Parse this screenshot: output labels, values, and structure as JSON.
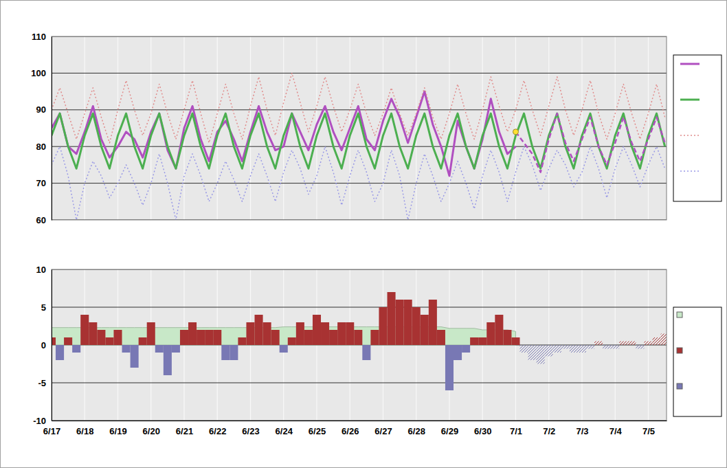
{
  "chart_data": [
    {
      "type": "line",
      "xlim": [
        0,
        18.55
      ],
      "xticks": [
        0,
        1,
        2,
        3,
        4,
        5,
        6,
        7,
        8,
        9,
        10,
        11,
        12,
        13,
        14,
        15,
        16,
        17,
        18
      ],
      "ylim": [
        60,
        110
      ],
      "yticks": [
        60,
        70,
        80,
        90,
        100,
        110
      ],
      "grid": true,
      "tick_labels": "y",
      "legend": "right",
      "series": [
        {
          "type": "line",
          "color": "#b04fc0",
          "line_style": "solid",
          "x": [
            0,
            0.25,
            0.5,
            0.75,
            1,
            1.25,
            1.5,
            1.75,
            2,
            2.25,
            2.5,
            2.75,
            3,
            3.25,
            3.5,
            3.75,
            4,
            4.25,
            4.5,
            4.75,
            5,
            5.25,
            5.5,
            5.75,
            6,
            6.25,
            6.5,
            6.75,
            7,
            7.25,
            7.5,
            7.75,
            8,
            8.25,
            8.5,
            8.75,
            9,
            9.25,
            9.5,
            9.75,
            10,
            10.25,
            10.5,
            10.75,
            11,
            11.25,
            11.5,
            11.75,
            12,
            12.25,
            12.5,
            12.75,
            13,
            13.25,
            13.5,
            13.75,
            14
          ],
          "values": [
            85,
            89,
            80,
            78,
            84,
            91,
            82,
            77,
            80,
            84,
            82,
            77,
            84,
            89,
            79,
            74,
            85,
            91,
            82,
            76,
            84,
            87,
            82,
            76,
            84,
            91,
            84,
            79,
            80,
            89,
            84,
            79,
            86,
            91,
            84,
            79,
            85,
            91,
            82,
            79,
            87,
            93,
            88,
            81,
            88,
            95,
            86,
            80,
            72,
            87,
            80,
            74,
            82,
            93,
            84,
            78,
            80
          ]
        },
        {
          "type": "line",
          "color": "#4caf50",
          "line_style": "solid",
          "x": [
            0,
            0.25,
            0.5,
            0.75,
            1,
            1.25,
            1.5,
            1.75,
            2,
            2.25,
            2.5,
            2.75,
            3,
            3.25,
            3.5,
            3.75,
            4,
            4.25,
            4.5,
            4.75,
            5,
            5.25,
            5.5,
            5.75,
            6,
            6.25,
            6.5,
            6.75,
            7,
            7.25,
            7.5,
            7.75,
            8,
            8.25,
            8.5,
            8.75,
            9,
            9.25,
            9.5,
            9.75,
            10,
            10.25,
            10.5,
            10.75,
            11,
            11.25,
            11.5,
            11.75,
            12,
            12.25,
            12.5,
            12.75,
            13,
            13.25,
            13.5,
            13.75,
            14,
            14.25,
            14.5,
            14.75,
            15,
            15.25,
            15.5,
            15.75,
            16,
            16.25,
            16.5,
            16.75,
            17,
            17.25,
            17.5,
            17.75,
            18,
            18.25,
            18.5
          ],
          "values": [
            83,
            89,
            80,
            74,
            83,
            89,
            80,
            74,
            83,
            89,
            80,
            74,
            83,
            89,
            80,
            74,
            83,
            89,
            80,
            74,
            83,
            89,
            80,
            74,
            83,
            89,
            80,
            74,
            83,
            89,
            80,
            74,
            83,
            89,
            80,
            74,
            83,
            89,
            80,
            74,
            83,
            89,
            80,
            74,
            83,
            89,
            80,
            74,
            83,
            89,
            80,
            74,
            83,
            89,
            80,
            74,
            83,
            89,
            80,
            74,
            83,
            89,
            80,
            74,
            83,
            89,
            80,
            74,
            83,
            89,
            80,
            74,
            83,
            89,
            80
          ]
        },
        {
          "type": "line",
          "color": "#e08c8c",
          "line_style": "dotted",
          "x": [
            0,
            0.25,
            0.5,
            0.75,
            1,
            1.25,
            1.5,
            1.75,
            2,
            2.25,
            2.5,
            2.75,
            3,
            3.25,
            3.5,
            3.75,
            4,
            4.25,
            4.5,
            4.75,
            5,
            5.25,
            5.5,
            5.75,
            6,
            6.25,
            6.5,
            6.75,
            7,
            7.25,
            7.5,
            7.75,
            8,
            8.25,
            8.5,
            8.75,
            9,
            9.25,
            9.5,
            9.75,
            10,
            10.25,
            10.5,
            10.75,
            11,
            11.25,
            11.5,
            11.75,
            12,
            12.25,
            12.5,
            12.75,
            13,
            13.25,
            13.5,
            13.75,
            14,
            14.25,
            14.5,
            14.75,
            15,
            15.25,
            15.5,
            15.75,
            16,
            16.25,
            16.5,
            16.75,
            17,
            17.25,
            17.5,
            17.75,
            18,
            18.25,
            18.5
          ],
          "values": [
            90,
            96,
            89,
            82,
            89,
            96,
            88,
            81,
            90,
            98,
            90,
            83,
            89,
            97,
            89,
            82,
            90,
            98,
            89,
            81,
            89,
            97,
            89,
            82,
            91,
            99,
            90,
            83,
            92,
            100,
            92,
            84,
            91,
            99,
            91,
            84,
            90,
            97,
            89,
            83,
            89,
            96,
            89,
            83,
            89,
            96,
            88,
            82,
            89,
            97,
            89,
            82,
            90,
            99,
            91,
            84,
            90,
            98,
            90,
            83,
            91,
            99,
            90,
            83,
            90,
            98,
            89,
            82,
            89,
            97,
            89,
            82,
            89,
            97,
            88
          ]
        },
        {
          "type": "line",
          "color": "#9999e6",
          "line_style": "dotted",
          "x": [
            0,
            0.25,
            0.5,
            0.75,
            1,
            1.25,
            1.5,
            1.75,
            2,
            2.25,
            2.5,
            2.75,
            3,
            3.25,
            3.5,
            3.75,
            4,
            4.25,
            4.5,
            4.75,
            5,
            5.25,
            5.5,
            5.75,
            6,
            6.25,
            6.5,
            6.75,
            7,
            7.25,
            7.5,
            7.75,
            8,
            8.25,
            8.5,
            8.75,
            9,
            9.25,
            9.5,
            9.75,
            10,
            10.25,
            10.5,
            10.75,
            11,
            11.25,
            11.5,
            11.75,
            12,
            12.25,
            12.5,
            12.75,
            13,
            13.25,
            13.5,
            13.75,
            14,
            14.25,
            14.5,
            14.75,
            15,
            15.25,
            15.5,
            15.75,
            16,
            16.25,
            16.5,
            16.75,
            17,
            17.25,
            17.5,
            17.75,
            18,
            18.25,
            18.5
          ],
          "values": [
            75,
            80,
            72,
            60,
            70,
            76,
            72,
            66,
            70,
            75,
            70,
            64,
            70,
            78,
            70,
            60,
            72,
            78,
            72,
            65,
            70,
            76,
            71,
            65,
            72,
            78,
            72,
            65,
            73,
            79,
            74,
            67,
            72,
            80,
            73,
            64,
            72,
            79,
            73,
            65,
            70,
            79,
            72,
            60,
            70,
            78,
            72,
            65,
            70,
            76,
            70,
            63,
            72,
            79,
            73,
            65,
            73,
            80,
            75,
            68,
            74,
            79,
            75,
            69,
            73,
            80,
            74,
            66,
            74,
            80,
            75,
            69,
            75,
            80,
            74
          ]
        },
        {
          "type": "line",
          "color": "#b04fc0",
          "line_style": "dashed",
          "x": [
            14,
            14.25,
            14.5,
            14.75,
            15,
            15.25,
            15.5,
            15.75,
            16,
            16.25,
            16.5,
            16.75,
            17,
            17.25,
            17.5,
            17.75,
            18,
            18.25,
            18.5
          ],
          "values": [
            84,
            81,
            78,
            73,
            82,
            89,
            81,
            76,
            82,
            88,
            80,
            75,
            81,
            88,
            81,
            76,
            82,
            88,
            81
          ]
        },
        {
          "type": "scatter",
          "color": "#ffe033",
          "marker": "circle",
          "x": [
            14
          ],
          "values": [
            84
          ]
        }
      ]
    },
    {
      "type": "bar",
      "xlim": [
        0,
        18.55
      ],
      "xticks": [
        {
          "value": 0,
          "label": "6/17"
        },
        {
          "value": 1,
          "label": "6/18"
        },
        {
          "value": 2,
          "label": "6/19"
        },
        {
          "value": 3,
          "label": "6/20"
        },
        {
          "value": 4,
          "label": "6/21"
        },
        {
          "value": 5,
          "label": "6/22"
        },
        {
          "value": 6,
          "label": "6/23"
        },
        {
          "value": 7,
          "label": "6/24"
        },
        {
          "value": 8,
          "label": "6/25"
        },
        {
          "value": 9,
          "label": "6/26"
        },
        {
          "value": 10,
          "label": "6/27"
        },
        {
          "value": 11,
          "label": "6/28"
        },
        {
          "value": 12,
          "label": "6/29"
        },
        {
          "value": 13,
          "label": "6/30"
        },
        {
          "value": 14,
          "label": "7/1"
        },
        {
          "value": 15,
          "label": "7/2"
        },
        {
          "value": 16,
          "label": "7/3"
        },
        {
          "value": 17,
          "label": "7/4"
        },
        {
          "value": 18,
          "label": "7/5"
        }
      ],
      "ylim": [
        -10,
        10
      ],
      "yticks": [
        -10,
        -5,
        0,
        5,
        10
      ],
      "grid": true,
      "legend": "right",
      "series": [
        {
          "type": "area",
          "color": "#c8e8c8",
          "x": [
            0,
            0.25,
            0.5,
            0.75,
            1,
            1.25,
            1.5,
            1.75,
            2,
            2.25,
            2.5,
            2.75,
            3,
            3.25,
            3.5,
            3.75,
            4,
            4.25,
            4.5,
            4.75,
            5,
            5.25,
            5.5,
            5.75,
            6,
            6.25,
            6.5,
            6.75,
            7,
            7.25,
            7.5,
            7.75,
            8,
            8.25,
            8.5,
            8.75,
            9,
            9.25,
            9.5,
            9.75,
            10,
            10.25,
            10.5,
            10.75,
            11,
            11.25,
            11.5,
            11.75,
            12,
            12.25,
            12.5,
            12.75,
            13,
            13.25,
            13.5,
            13.75,
            14
          ],
          "values": [
            2.3,
            2.3,
            2.3,
            2.3,
            2.3,
            2.3,
            2.3,
            2.3,
            2.3,
            2.3,
            2.3,
            2.3,
            2.3,
            2.3,
            2.3,
            2.3,
            2.3,
            2.3,
            2.3,
            2.3,
            2.3,
            2.3,
            2.3,
            2.3,
            2.3,
            2.3,
            2.3,
            2.3,
            2.4,
            2.4,
            2.4,
            2.4,
            2.4,
            2.4,
            2.4,
            2.4,
            2.4,
            2.4,
            2.4,
            2.4,
            2.4,
            2.4,
            2.4,
            2.4,
            2.4,
            2.4,
            2.4,
            2.4,
            2.2,
            2.2,
            2.2,
            2.2,
            2.0,
            2.0,
            2.0,
            2.0,
            1.8
          ]
        },
        {
          "type": "bar",
          "x": [
            0,
            0.25,
            0.5,
            0.75,
            1,
            1.25,
            1.5,
            1.75,
            2,
            2.25,
            2.5,
            2.75,
            3,
            3.25,
            3.5,
            3.75,
            4,
            4.25,
            4.5,
            4.75,
            5,
            5.25,
            5.5,
            5.75,
            6,
            6.25,
            6.5,
            6.75,
            7,
            7.25,
            7.5,
            7.75,
            8,
            8.25,
            8.5,
            8.75,
            9,
            9.25,
            9.5,
            9.75,
            10,
            10.25,
            10.5,
            10.75,
            11,
            11.25,
            11.5,
            11.75,
            12,
            12.25,
            12.5,
            12.75,
            13,
            13.25,
            13.5,
            13.75,
            14
          ],
          "values": [
            1,
            -2,
            1,
            -1,
            4,
            3,
            2,
            1,
            2,
            -1,
            -3,
            1,
            3,
            -1,
            -4,
            -1,
            2,
            3,
            2,
            2,
            2,
            -2,
            -2,
            1,
            3,
            4,
            3,
            2,
            -1,
            1,
            3,
            2,
            4,
            3,
            2,
            3,
            3,
            2,
            -2,
            2,
            5,
            7,
            6,
            6,
            5,
            4,
            6,
            2,
            -6,
            -2,
            -1,
            1,
            1,
            3,
            4,
            2,
            1
          ],
          "colors": [
            "#a83232",
            "#7878b4",
            "#a83232",
            "#7878b4",
            "#a83232",
            "#a83232",
            "#a83232",
            "#a83232",
            "#a83232",
            "#7878b4",
            "#7878b4",
            "#a83232",
            "#a83232",
            "#7878b4",
            "#7878b4",
            "#7878b4",
            "#a83232",
            "#a83232",
            "#a83232",
            "#a83232",
            "#a83232",
            "#7878b4",
            "#7878b4",
            "#a83232",
            "#a83232",
            "#a83232",
            "#a83232",
            "#a83232",
            "#7878b4",
            "#a83232",
            "#a83232",
            "#a83232",
            "#a83232",
            "#a83232",
            "#a83232",
            "#a83232",
            "#a83232",
            "#a83232",
            "#7878b4",
            "#a83232",
            "#a83232",
            "#a83232",
            "#a83232",
            "#a83232",
            "#a83232",
            "#a83232",
            "#a83232",
            "#a83232",
            "#7878b4",
            "#7878b4",
            "#7878b4",
            "#a83232",
            "#a83232",
            "#a83232",
            "#a83232",
            "#a83232",
            "#a83232"
          ]
        },
        {
          "type": "bar",
          "line_style": "hatched",
          "x": [
            14.25,
            14.5,
            14.75,
            15,
            15.25,
            15.5,
            15.75,
            16,
            16.25,
            16.5,
            16.75,
            17,
            17.25,
            17.5,
            17.75,
            18,
            18.25,
            18.5
          ],
          "values": [
            -1,
            -2,
            -2.5,
            -1.5,
            -1,
            -0.5,
            -1,
            -1,
            -0.5,
            0.5,
            -0.5,
            -0.5,
            0.5,
            0.5,
            -0.5,
            0.5,
            1,
            1.5
          ],
          "colors": [
            "#7878b4",
            "#7878b4",
            "#7878b4",
            "#7878b4",
            "#7878b4",
            "#7878b4",
            "#7878b4",
            "#7878b4",
            "#7878b4",
            "#a83232",
            "#7878b4",
            "#7878b4",
            "#a83232",
            "#a83232",
            "#7878b4",
            "#a83232",
            "#a83232",
            "#a83232"
          ]
        }
      ]
    }
  ]
}
